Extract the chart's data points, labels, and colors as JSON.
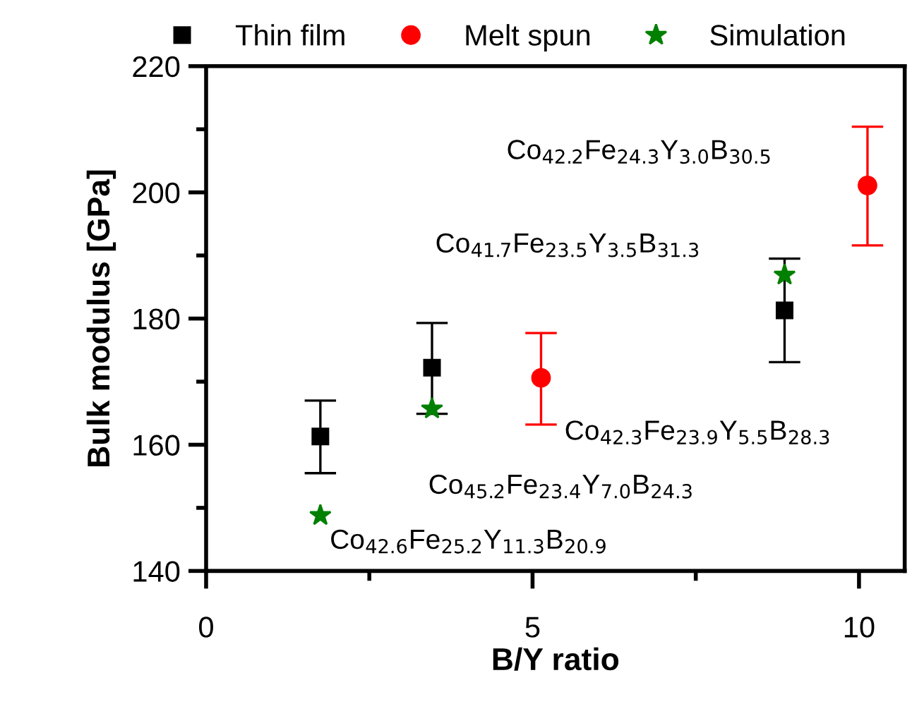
{
  "chart_data": {
    "type": "scatter",
    "xlabel": "B/Y ratio",
    "ylabel": "Bulk modulus [GPa]",
    "xlim": [
      0,
      10.7
    ],
    "ylim": [
      140,
      220
    ],
    "xticks": [
      0,
      5,
      10
    ],
    "yticks": [
      140,
      160,
      180,
      200,
      220
    ],
    "legend": "top",
    "grid": false,
    "series": [
      {
        "name": "Thin film",
        "color": "#000000",
        "marker": "square",
        "x": [
          1.75,
          3.46,
          8.86
        ],
        "values": [
          161.3,
          172.2,
          181.3
        ],
        "errors": [
          [
            155.5,
            167.0
          ],
          [
            164.9,
            179.3
          ],
          [
            173.1,
            189.5
          ]
        ]
      },
      {
        "name": "Melt spun",
        "color": "#ff0000",
        "marker": "circle",
        "x": [
          5.13,
          10.13
        ],
        "values": [
          170.6,
          201.1
        ],
        "errors": [
          [
            163.2,
            177.7
          ],
          [
            191.6,
            210.4
          ]
        ]
      },
      {
        "name": "Simulation",
        "color": "#008000",
        "marker": "star",
        "x": [
          1.75,
          3.46,
          8.86
        ],
        "values": [
          148.8,
          165.7,
          186.9
        ]
      }
    ],
    "annotations": [
      "Co$_{42.2}$Fe$_{24.3}$Y$_{3.0}$B$_{30.5}$",
      "Co$_{41.7}$Fe$_{23.5}$Y$_{3.5}$B$_{31.3}$",
      "Co$_{42.3}$Fe$_{23.9}$Y$_{5.5}$B$_{28.3}$",
      "Co$_{45.2}$Fe$_{23.4}$Y$_{7.0}$B$_{24.3}$",
      "Co$_{42.6}$Fe$_{25.2}$Y$_{11.3}$B$_{20.9}$"
    ]
  }
}
